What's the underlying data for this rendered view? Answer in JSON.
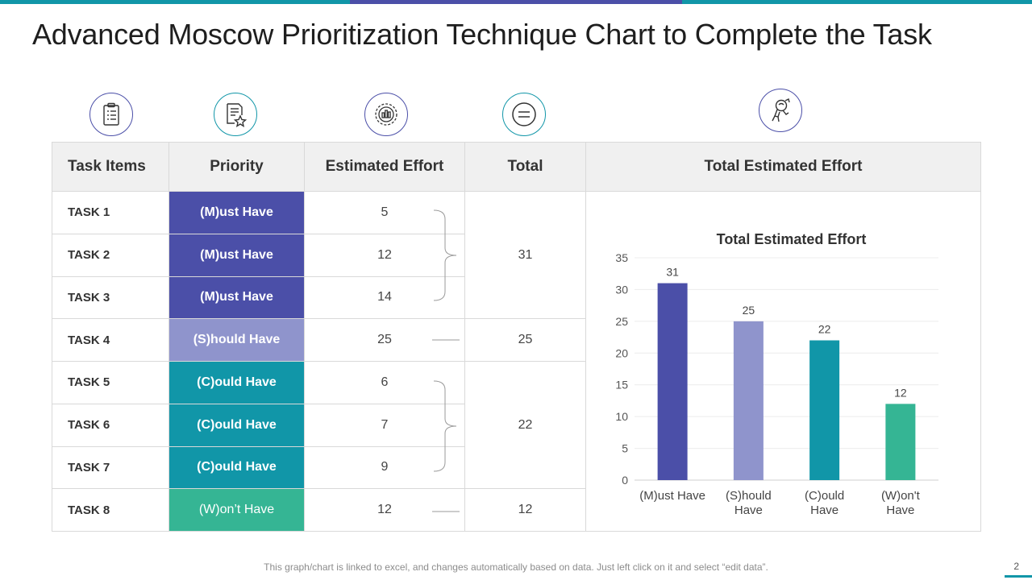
{
  "slide": {
    "title": "Advanced Moscow Prioritization Technique Chart to Complete the Task",
    "footnote": "This graph/chart is linked to excel, and changes automatically based on data. Just left click on it and select “edit data”.",
    "page_number": "2"
  },
  "icons": [
    "clipboard-checklist-icon",
    "document-star-icon",
    "chart-gear-icon",
    "equals-icon",
    "astronaut-icon"
  ],
  "table": {
    "headers": [
      "Task Items",
      "Priority",
      "Estimated  Effort",
      "Total",
      "Total  Estimated  Effort"
    ],
    "rows": [
      {
        "task": "TASK 1",
        "priority": "(M)ust Have",
        "effort": "5",
        "color": "#4b4fa8"
      },
      {
        "task": "TASK 2",
        "priority": "(M)ust Have",
        "effort": "12",
        "color": "#4b4fa8"
      },
      {
        "task": "TASK 3",
        "priority": "(M)ust Have",
        "effort": "14",
        "color": "#4b4fa8"
      },
      {
        "task": "TASK 4",
        "priority": "(S)hould Have",
        "effort": "25",
        "color": "#8f94cc"
      },
      {
        "task": "TASK 5",
        "priority": "(C)ould Have",
        "effort": "6",
        "color": "#1196a8"
      },
      {
        "task": "TASK 6",
        "priority": "(C)ould Have",
        "effort": "7",
        "color": "#1196a8"
      },
      {
        "task": "TASK 7",
        "priority": "(C)ould Have",
        "effort": "9",
        "color": "#1196a8"
      },
      {
        "task": "TASK 8",
        "priority": "(W)on’t Have",
        "effort": "12",
        "color": "#35b594"
      }
    ],
    "totals": [
      "31",
      "25",
      "22",
      "12"
    ]
  },
  "chart_data": {
    "type": "bar",
    "title": "Total Estimated Effort",
    "categories": [
      "(M)ust Have",
      "(S)hould Have",
      "(C)ould Have",
      "(W)on't Have"
    ],
    "values": [
      31,
      25,
      22,
      12
    ],
    "colors": [
      "#4b4fa8",
      "#8f94cc",
      "#1196a8",
      "#35b594"
    ],
    "ylim": [
      0,
      35
    ],
    "yticks": [
      0,
      5,
      10,
      15,
      20,
      25,
      30,
      35
    ],
    "xlabel": "",
    "ylabel": "",
    "grid": true
  }
}
